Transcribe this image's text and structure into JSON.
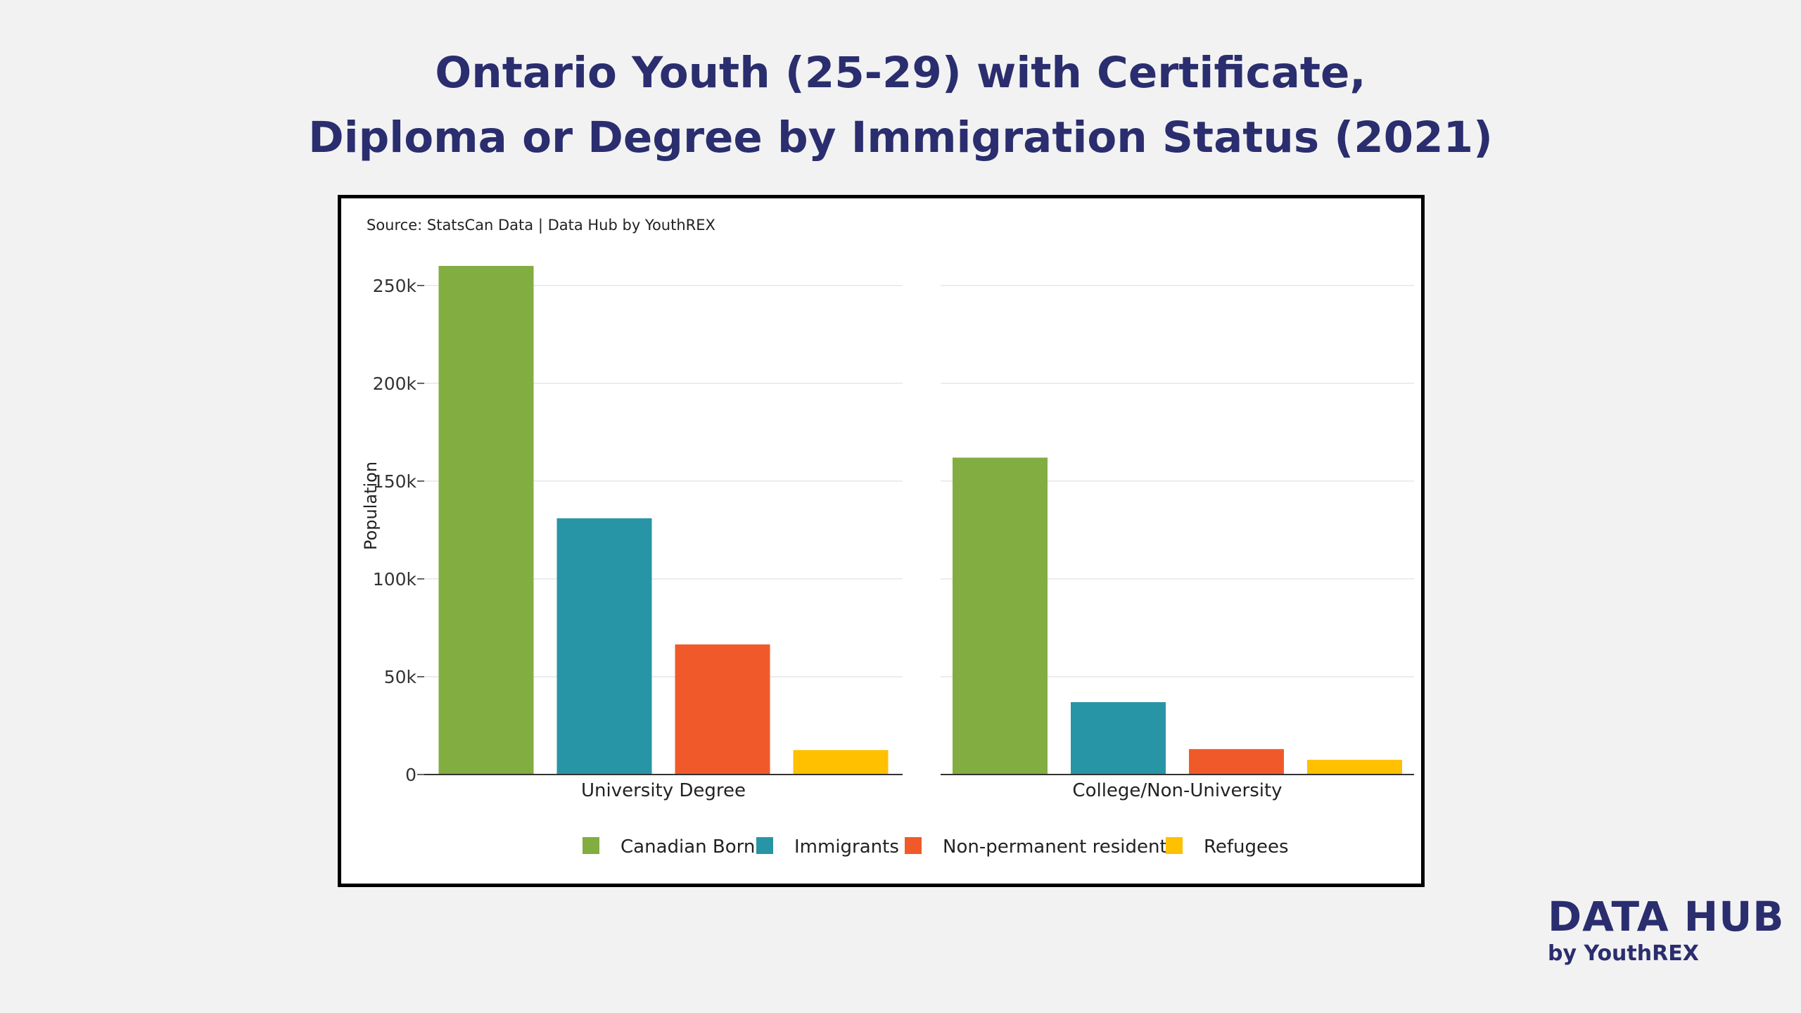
{
  "title": {
    "line1": "Ontario Youth (25-29) with Certificate,",
    "line2": "Diploma or Degree by Immigration Status (2021)"
  },
  "logo": {
    "main": "DATA HUB",
    "sub": "by YouthREX"
  },
  "chart_data": {
    "type": "bar",
    "source": "Source: StatsCan Data | Data Hub by YouthREX",
    "ylabel": "Population",
    "ylim": [
      0,
      260000
    ],
    "yticks": [
      0,
      50000,
      100000,
      150000,
      200000,
      250000
    ],
    "ytick_labels": [
      "0",
      "50k",
      "100k",
      "150k",
      "200k",
      "250k"
    ],
    "grid": true,
    "legend_position": "bottom",
    "panels": [
      "University Degree",
      "College/Non-University"
    ],
    "series": [
      {
        "name": "Canadian Born",
        "color": "#82ad40",
        "values": [
          260000,
          162000
        ]
      },
      {
        "name": "Immigrants",
        "color": "#2895a6",
        "values": [
          131000,
          37000
        ]
      },
      {
        "name": "Non-permanent residents",
        "color": "#f05a2b",
        "values": [
          66500,
          13000
        ]
      },
      {
        "name": "Refugees",
        "color": "#ffc000",
        "values": [
          12500,
          7500
        ]
      }
    ]
  }
}
